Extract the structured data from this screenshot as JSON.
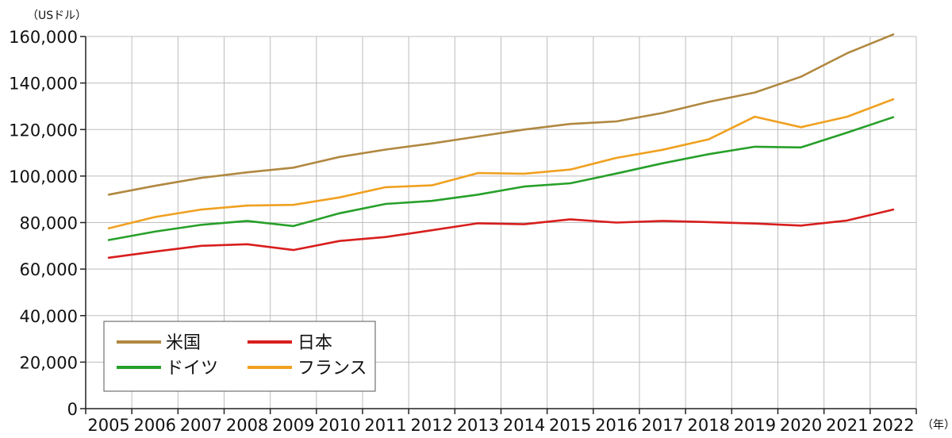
{
  "chart_data": {
    "type": "line",
    "y_unit_label": "（USドル）",
    "x_unit_label": "（年）",
    "categories": [
      "2005",
      "2006",
      "2007",
      "2008",
      "2009",
      "2010",
      "2011",
      "2012",
      "2013",
      "2014",
      "2015",
      "2016",
      "2017",
      "2018",
      "2019",
      "2020",
      "2021",
      "2022"
    ],
    "ylim": [
      0,
      160000
    ],
    "yticks": [
      0,
      20000,
      40000,
      60000,
      80000,
      100000,
      120000,
      140000,
      160000
    ],
    "ytick_labels": [
      "0",
      "20,000",
      "40,000",
      "60,000",
      "80,000",
      "100,000",
      "120,000",
      "140,000",
      "160,000"
    ],
    "grid": true,
    "legend_position": "bottom-left",
    "series": [
      {
        "name": "米国",
        "color": "#b08840",
        "values": [
          92000,
          95800,
          99200,
          101600,
          103600,
          108200,
          111400,
          114000,
          117000,
          120000,
          122400,
          123500,
          127100,
          131900,
          135900,
          142700,
          152800,
          160900
        ]
      },
      {
        "name": "日本",
        "color": "#d81e1e",
        "values": [
          64900,
          67500,
          70000,
          70700,
          68200,
          72100,
          73800,
          76700,
          79700,
          79300,
          81400,
          80000,
          80700,
          80200,
          79600,
          78700,
          80900,
          85600
        ]
      },
      {
        "name": "ドイツ",
        "color": "#27a02a",
        "values": [
          72500,
          76100,
          79000,
          80700,
          78500,
          84000,
          88000,
          89300,
          92000,
          95500,
          96900,
          101100,
          105500,
          109400,
          112600,
          112300,
          118700,
          125300
        ]
      },
      {
        "name": "フランス",
        "color": "#f0a020",
        "values": [
          77500,
          82400,
          85600,
          87300,
          87600,
          90800,
          95200,
          96000,
          101300,
          101000,
          102800,
          107800,
          111300,
          115800,
          125500,
          121000,
          125500,
          133000
        ]
      }
    ]
  }
}
